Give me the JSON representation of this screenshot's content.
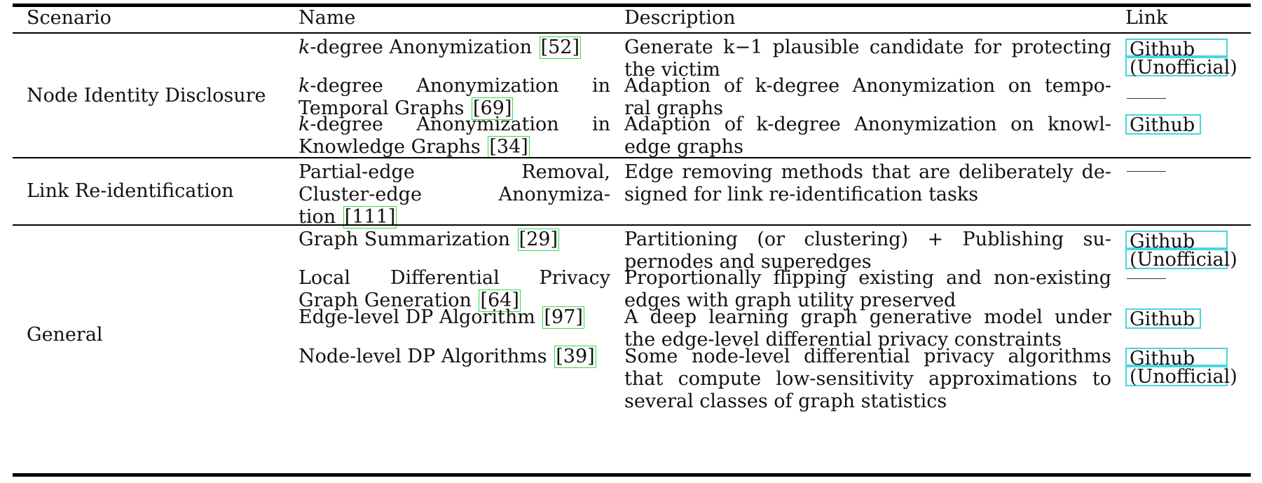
{
  "table": {
    "headers": [
      "Scenario",
      "Name",
      "Description",
      "Link"
    ],
    "groups": [
      {
        "scenario": "Node Identity Disclosure",
        "rows": [
          {
            "name_prefix": "k",
            "name_lines": [
              "-degree Anonymization "
            ],
            "cite": "[52]",
            "description_lines": [
              "Generate k−1 plausible candidate for protecting",
              "the victim"
            ],
            "link_lines": [
              "Github",
              "(Unofficial)"
            ]
          },
          {
            "name_prefix": "k",
            "name_lines": [
              "-degree Anonymization in",
              "Temporal Graphs "
            ],
            "cite": "[69]",
            "description_lines": [
              "Adaption of k-degree Anonymization on tempo-",
              "ral graphs"
            ],
            "link_lines": []
          },
          {
            "name_prefix": "k",
            "name_lines": [
              "-degree Anonymization in",
              "Knowledge Graphs "
            ],
            "cite": "[34]",
            "description_lines": [
              "Adaption of k-degree Anonymization on knowl-",
              "edge graphs"
            ],
            "link_lines": [
              "Github"
            ]
          }
        ]
      },
      {
        "scenario": "Link Re-identification",
        "rows": [
          {
            "name_lines": [
              "Partial-edge Removal,",
              "Cluster-edge Anonymiza-",
              "tion "
            ],
            "cite": "[111]",
            "description_lines": [
              "Edge removing methods that are deliberately de-",
              "signed for link re-identification tasks"
            ],
            "link_lines": []
          }
        ]
      },
      {
        "scenario": "General",
        "rows": [
          {
            "name_lines": [
              "Graph Summarization "
            ],
            "cite": "[29]",
            "description_lines": [
              "Partitioning (or clustering) + Publishing su-",
              "pernodes and superedges"
            ],
            "link_lines": [
              "Github",
              "(Unofficial)"
            ]
          },
          {
            "name_lines": [
              "Local Differential Privacy",
              "Graph Generation "
            ],
            "cite": "[64]",
            "description_lines": [
              "Proportionally flipping existing and non-existing",
              "edges with graph utility preserved"
            ],
            "link_lines": []
          },
          {
            "name_lines": [
              "Edge-level DP Algorithm "
            ],
            "cite": "[97]",
            "description_lines": [
              "A deep learning graph generative model under",
              "the edge-level differential privacy constraints"
            ],
            "link_lines": [
              "Github"
            ]
          },
          {
            "name_lines": [
              "Node-level DP Algorithms "
            ],
            "cite": "[39]",
            "description_lines": [
              "Some node-level differential privacy algorithms",
              "that compute low-sensitivity approximations to",
              "several classes of graph statistics"
            ],
            "link_lines": [
              "Github",
              "(Unofficial)"
            ]
          }
        ]
      }
    ]
  },
  "colors": {
    "citation_box": "#39d94f",
    "link_box": "#49d6df",
    "rule": "#000000"
  }
}
